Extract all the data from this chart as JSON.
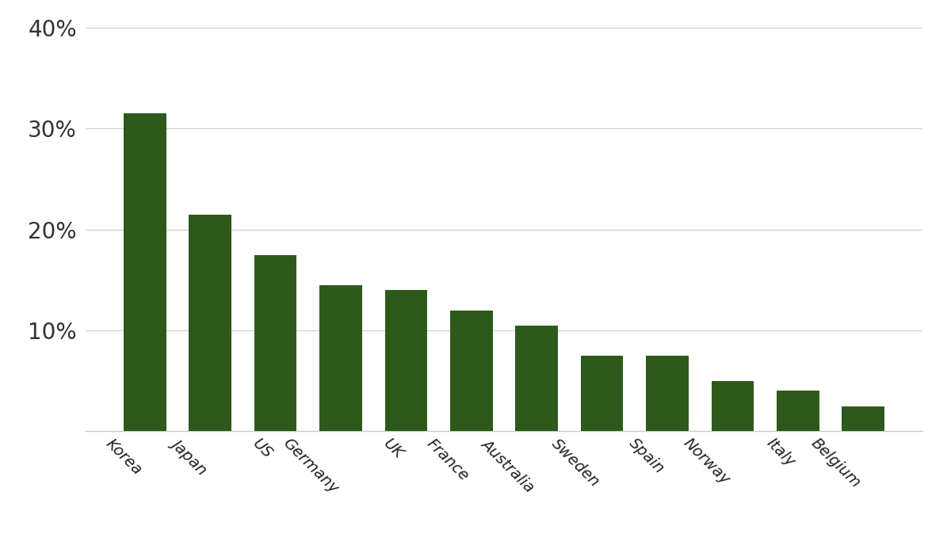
{
  "categories": [
    "Korea",
    "Japan",
    "US",
    "Germany",
    "UK",
    "France",
    "Australia",
    "Sweden",
    "Spain",
    "Norway",
    "Italy",
    "Belgium"
  ],
  "values": [
    31.5,
    21.5,
    17.5,
    14.5,
    14.0,
    12.0,
    10.5,
    7.5,
    7.5,
    5.0,
    4.0,
    2.5
  ],
  "bar_color": "#2d5a1b",
  "ylim": [
    0,
    40
  ],
  "yticks": [
    0,
    10,
    20,
    30,
    40
  ],
  "ytick_labels": [
    "",
    "10%",
    "20%",
    "30%",
    "40%"
  ],
  "background_color": "#ffffff",
  "grid_color": "#cccccc",
  "bar_width": 0.65,
  "ytick_fontsize": 20,
  "xtick_fontsize": 14
}
